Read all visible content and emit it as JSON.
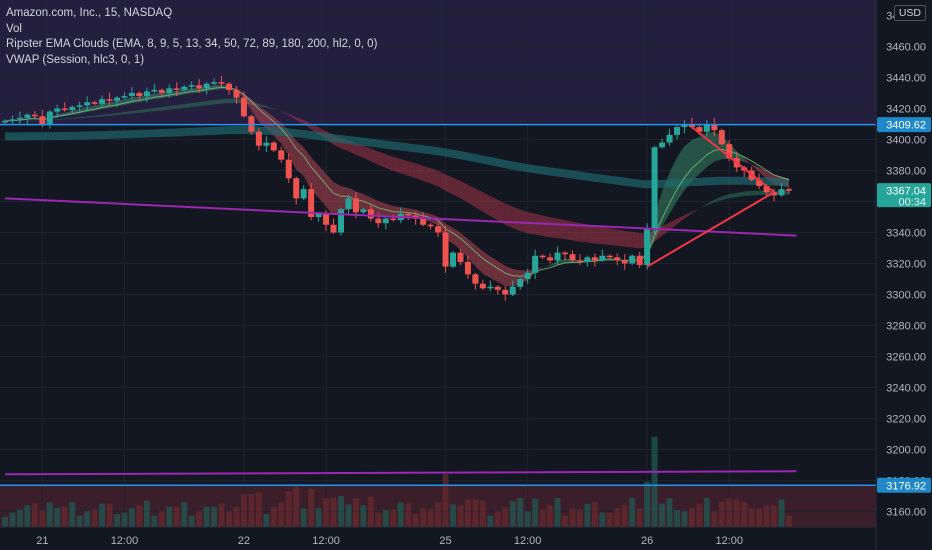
{
  "legend": {
    "symbol": "Amazon.com, Inc., 15, NASDAQ",
    "vol": "Vol",
    "ema_clouds": "Ripster EMA Clouds (EMA, 8, 9, 5, 13, 34, 50, 72, 89, 180, 200, hl2, 0, 0)",
    "vwap": "VWAP (Session, hlc3, 0, 1)"
  },
  "currency": "USD",
  "colors": {
    "background": "#131722",
    "up": "#26a69a",
    "down": "#ef5350",
    "horizontal_blue": "#2196f3",
    "trend_purple": "#9c27b0",
    "triangle_red": "#f23645",
    "last_price_tag": "#26a69a",
    "level_tag": "#1e88c8"
  },
  "chart_data": {
    "type": "candlestick",
    "y_axis": {
      "min": 3150,
      "max": 3490,
      "ticks": [
        3160,
        3180,
        3200,
        3220,
        3240,
        3260,
        3280,
        3300,
        3320,
        3340,
        3360,
        3380,
        3400,
        3420,
        3440,
        3460,
        3480
      ]
    },
    "x_axis": {
      "count": 106,
      "ticks": [
        {
          "index": 5,
          "label": "21"
        },
        {
          "index": 16,
          "label": "12:00"
        },
        {
          "index": 32,
          "label": "22"
        },
        {
          "index": 43,
          "label": "12:00"
        },
        {
          "index": 59,
          "label": "25"
        },
        {
          "index": 70,
          "label": "12:00"
        },
        {
          "index": 86,
          "label": "26"
        },
        {
          "index": 97,
          "label": "12:00"
        }
      ]
    },
    "series": [
      {
        "name": "AMZN",
        "close": [
          3412,
          3413,
          3414,
          3416,
          3415,
          3410,
          3418,
          3420,
          3419,
          3421,
          3422,
          3424,
          3423,
          3426,
          3425,
          3427,
          3428,
          3430,
          3428,
          3431,
          3432,
          3430,
          3433,
          3432,
          3434,
          3435,
          3433,
          3436,
          3437,
          3436,
          3432,
          3427,
          3415,
          3405,
          3396,
          3398,
          3393,
          3387,
          3375,
          3362,
          3368,
          3350,
          3352,
          3345,
          3340,
          3355,
          3362,
          3353,
          3355,
          3349,
          3346,
          3349,
          3348,
          3352,
          3351,
          3349,
          3345,
          3344,
          3340,
          3318,
          3327,
          3321,
          3313,
          3307,
          3304,
          3305,
          3303,
          3300,
          3305,
          3310,
          3314,
          3325,
          3324,
          3322,
          3327,
          3326,
          3322,
          3321,
          3324,
          3322,
          3325,
          3324,
          3322,
          3320,
          3325,
          3319,
          3342,
          3395,
          3398,
          3403,
          3408,
          3410,
          3408,
          3405,
          3410,
          3406,
          3397,
          3388,
          3382,
          3380,
          3374,
          3370,
          3366,
          3364,
          3368,
          3367
        ]
      }
    ],
    "lines": [
      {
        "name": "horizontal-level-upper",
        "y": 3409.62
      },
      {
        "name": "horizontal-level-lower",
        "y": 3176.92
      },
      {
        "name": "purple-trendline-descending",
        "from": [
          0,
          3362
        ],
        "to": [
          106,
          3338
        ]
      },
      {
        "name": "purple-line-lower",
        "from": [
          0,
          3184
        ],
        "to": [
          106,
          3186
        ]
      },
      {
        "name": "triangle-upper-leg",
        "from": [
          92,
          3408
        ],
        "to": [
          103,
          3366
        ]
      },
      {
        "name": "triangle-lower-leg",
        "from": [
          86,
          3318
        ],
        "to": [
          103,
          3366
        ]
      }
    ],
    "price_tags": [
      {
        "value": "3409.62",
        "y": 3409.62,
        "name": "level-upper-tag"
      },
      {
        "value": "3367.04",
        "sub": "00:34",
        "y": 3367.04,
        "name": "last-price-tag"
      },
      {
        "value": "3176.92",
        "y": 3176.92,
        "name": "level-lower-tag"
      }
    ]
  }
}
